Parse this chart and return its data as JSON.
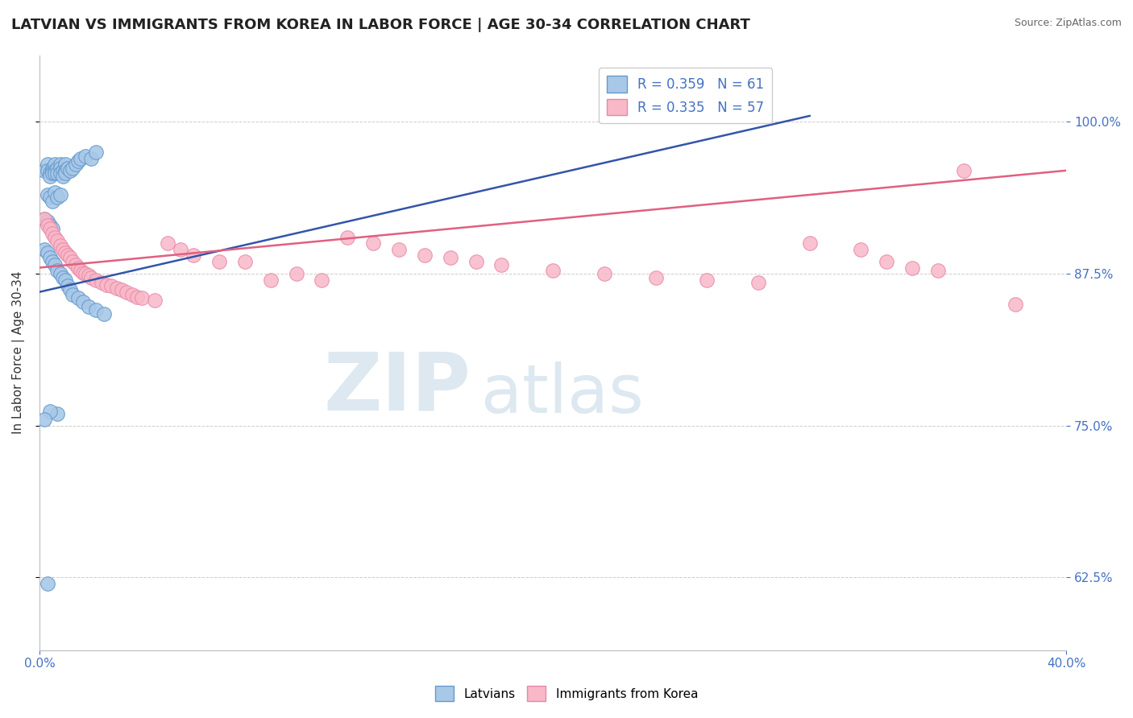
{
  "title": "LATVIAN VS IMMIGRANTS FROM KOREA IN LABOR FORCE | AGE 30-34 CORRELATION CHART",
  "source_text": "Source: ZipAtlas.com",
  "ylabel": "In Labor Force | Age 30-34",
  "yaxis_values": [
    0.625,
    0.75,
    0.875,
    1.0
  ],
  "xmin": 0.0,
  "xmax": 0.4,
  "ymin": 0.565,
  "ymax": 1.055,
  "blue_color": "#a8c8e8",
  "blue_edge": "#6699cc",
  "pink_color": "#f8b8c8",
  "pink_edge": "#e888a8",
  "blue_line_color": "#3355aa",
  "pink_line_color": "#e06080",
  "bg_color": "#ffffff",
  "grid_color": "#cccccc",
  "watermark_color": "#dde8f0",
  "tick_color": "#4472c4",
  "latvian_x": [
    0.002,
    0.003,
    0.003,
    0.004,
    0.004,
    0.005,
    0.005,
    0.005,
    0.006,
    0.006,
    0.006,
    0.007,
    0.007,
    0.008,
    0.008,
    0.008,
    0.009,
    0.009,
    0.01,
    0.01,
    0.01,
    0.011,
    0.012,
    0.013,
    0.014,
    0.015,
    0.016,
    0.018,
    0.02,
    0.022,
    0.003,
    0.004,
    0.005,
    0.006,
    0.007,
    0.008,
    0.002,
    0.003,
    0.004,
    0.005,
    0.002,
    0.003,
    0.004,
    0.005,
    0.006,
    0.007,
    0.008,
    0.009,
    0.01,
    0.011,
    0.012,
    0.013,
    0.015,
    0.017,
    0.019,
    0.022,
    0.025,
    0.007,
    0.004,
    0.002,
    0.003
  ],
  "latvian_y": [
    0.96,
    0.965,
    0.96,
    0.958,
    0.955,
    0.962,
    0.96,
    0.958,
    0.965,
    0.96,
    0.958,
    0.962,
    0.958,
    0.965,
    0.962,
    0.958,
    0.96,
    0.955,
    0.965,
    0.96,
    0.958,
    0.962,
    0.96,
    0.962,
    0.965,
    0.968,
    0.97,
    0.972,
    0.97,
    0.975,
    0.94,
    0.938,
    0.935,
    0.942,
    0.938,
    0.94,
    0.92,
    0.918,
    0.915,
    0.912,
    0.895,
    0.892,
    0.888,
    0.885,
    0.882,
    0.878,
    0.875,
    0.872,
    0.87,
    0.865,
    0.862,
    0.858,
    0.855,
    0.852,
    0.848,
    0.845,
    0.842,
    0.76,
    0.762,
    0.755,
    0.62
  ],
  "korea_x": [
    0.002,
    0.003,
    0.004,
    0.005,
    0.006,
    0.007,
    0.008,
    0.009,
    0.01,
    0.011,
    0.012,
    0.013,
    0.014,
    0.015,
    0.016,
    0.017,
    0.018,
    0.019,
    0.02,
    0.022,
    0.024,
    0.026,
    0.028,
    0.03,
    0.032,
    0.034,
    0.036,
    0.038,
    0.04,
    0.045,
    0.05,
    0.055,
    0.06,
    0.07,
    0.08,
    0.09,
    0.1,
    0.11,
    0.12,
    0.13,
    0.14,
    0.15,
    0.16,
    0.17,
    0.18,
    0.2,
    0.22,
    0.24,
    0.26,
    0.28,
    0.3,
    0.32,
    0.33,
    0.34,
    0.35,
    0.36,
    0.38
  ],
  "korea_y": [
    0.92,
    0.915,
    0.912,
    0.908,
    0.905,
    0.902,
    0.898,
    0.895,
    0.892,
    0.89,
    0.888,
    0.885,
    0.882,
    0.88,
    0.878,
    0.876,
    0.875,
    0.874,
    0.872,
    0.87,
    0.868,
    0.866,
    0.865,
    0.863,
    0.862,
    0.86,
    0.858,
    0.856,
    0.855,
    0.853,
    0.9,
    0.895,
    0.89,
    0.885,
    0.885,
    0.87,
    0.875,
    0.87,
    0.905,
    0.9,
    0.895,
    0.89,
    0.888,
    0.885,
    0.882,
    0.878,
    0.875,
    0.872,
    0.87,
    0.868,
    0.9,
    0.895,
    0.885,
    0.88,
    0.878,
    0.96,
    0.85
  ],
  "blue_trend_x0": 0.0,
  "blue_trend_y0": 0.86,
  "blue_trend_x1": 0.3,
  "blue_trend_y1": 1.005,
  "pink_trend_x0": 0.0,
  "pink_trend_y0": 0.88,
  "pink_trend_x1": 0.4,
  "pink_trend_y1": 0.96
}
